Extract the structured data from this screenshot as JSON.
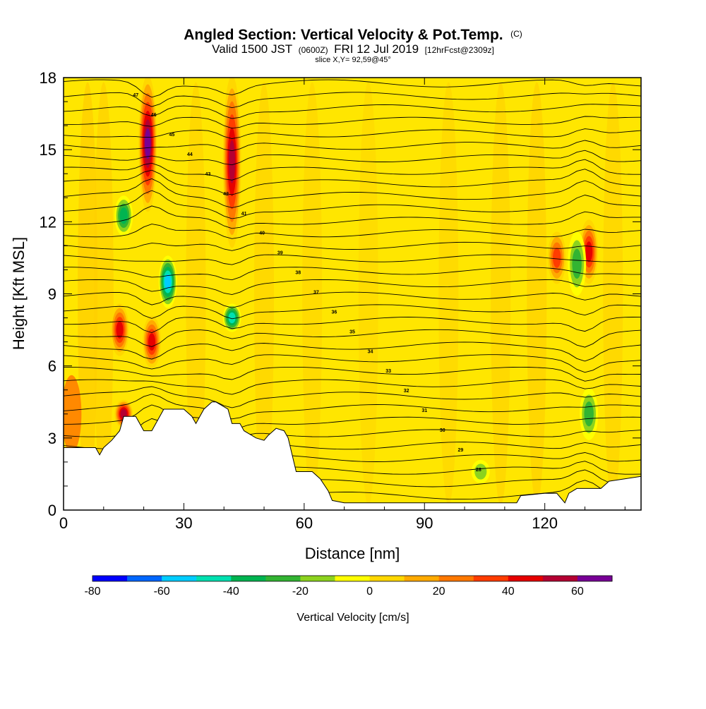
{
  "chart_data": {
    "type": "heatmap",
    "title": {
      "main": "Angled Section: Vertical Velocity & Pot.Temp.",
      "unit": "(C)"
    },
    "subtitle": {
      "valid": "Valid 1500 JST",
      "zulu": "(0600Z)",
      "date": "FRI 12 Jul 2019",
      "forecast": "[12hrFcst@2309z]"
    },
    "slice_label": "slice X,Y= 92,59@45°",
    "xlabel": "Distance [nm]",
    "ylabel": "Height [Kft MSL]",
    "xlim": [
      0,
      144
    ],
    "ylim": [
      0,
      18
    ],
    "x_ticks": [
      "0",
      "30",
      "60",
      "90",
      "120"
    ],
    "y_ticks": [
      "0",
      "3",
      "6",
      "9",
      "12",
      "15",
      "18"
    ],
    "colorbar": {
      "title": "Vertical Velocity [cm/s]",
      "tick_labels": [
        "-80",
        "-60",
        "-40",
        "-20",
        "0",
        "20",
        "40",
        "60"
      ],
      "levels": [
        -80,
        -70,
        -60,
        -50,
        -40,
        -30,
        -20,
        -10,
        0,
        10,
        20,
        30,
        40,
        50,
        60,
        70
      ],
      "colors": [
        "#0000ff",
        "#0066ff",
        "#00ccff",
        "#00e0b0",
        "#00b450",
        "#32b432",
        "#8cd21e",
        "#ffff00",
        "#ffd700",
        "#ffaa00",
        "#ff7800",
        "#ff3c00",
        "#e60000",
        "#b40032",
        "#780096"
      ]
    },
    "background_color": "#ffe600",
    "terrain_top_kft": [
      [
        0,
        2.6
      ],
      [
        8,
        2.6
      ],
      [
        9,
        2.3
      ],
      [
        10,
        2.6
      ],
      [
        12,
        2.9
      ],
      [
        14,
        3.3
      ],
      [
        15,
        3.9
      ],
      [
        18,
        3.9
      ],
      [
        19,
        3.6
      ],
      [
        20,
        3.3
      ],
      [
        22,
        3.3
      ],
      [
        23,
        3.6
      ],
      [
        25,
        4.2
      ],
      [
        30,
        4.2
      ],
      [
        32,
        3.9
      ],
      [
        33,
        3.6
      ],
      [
        35,
        4.2
      ],
      [
        37,
        4.5
      ],
      [
        38,
        4.5
      ],
      [
        41,
        4.2
      ],
      [
        42,
        3.6
      ],
      [
        44,
        3.6
      ],
      [
        45,
        3.3
      ],
      [
        48,
        3.0
      ],
      [
        50,
        2.9
      ],
      [
        51,
        3.1
      ],
      [
        53,
        3.4
      ],
      [
        55,
        3.3
      ],
      [
        56,
        3.0
      ],
      [
        57,
        2.3
      ],
      [
        58,
        1.6
      ],
      [
        62,
        1.6
      ],
      [
        64,
        1.3
      ],
      [
        66,
        0.8
      ],
      [
        67,
        0.4
      ],
      [
        70,
        0.3
      ],
      [
        104,
        0.3
      ],
      [
        113,
        0.3
      ],
      [
        114,
        0.6
      ],
      [
        120,
        0.7
      ],
      [
        123,
        0.7
      ],
      [
        124,
        0.5
      ],
      [
        125,
        0.3
      ],
      [
        126,
        0.7
      ],
      [
        128,
        0.9
      ],
      [
        134,
        0.9
      ],
      [
        136,
        1.2
      ],
      [
        144,
        1.4
      ]
    ],
    "updraft_cores": [
      {
        "x": 21,
        "z": [
          12.5,
          18
        ],
        "w": 65
      },
      {
        "x": 42,
        "z": [
          11,
          18
        ],
        "w": 60
      },
      {
        "x": 14,
        "z": [
          6.5,
          8.5
        ],
        "w": 45
      },
      {
        "x": 22,
        "z": [
          6,
          8
        ],
        "w": 45
      },
      {
        "x": 15,
        "z": [
          3.5,
          4.5
        ],
        "w": 55
      },
      {
        "x": 131,
        "z": [
          9.5,
          12
        ],
        "w": 50
      },
      {
        "x": 123,
        "z": [
          9.5,
          11.5
        ],
        "w": 40
      }
    ],
    "downdraft_cores": [
      {
        "x": 26,
        "z": [
          8.5,
          10.5
        ],
        "w": -55
      },
      {
        "x": 42,
        "z": [
          7.5,
          8.5
        ],
        "w": -45
      },
      {
        "x": 15,
        "z": [
          11.5,
          13
        ],
        "w": -40
      },
      {
        "x": 128,
        "z": [
          9,
          11.5
        ],
        "w": -30
      },
      {
        "x": 131,
        "z": [
          3,
          5
        ],
        "w": -30
      },
      {
        "x": 104,
        "z": [
          1.2,
          2
        ],
        "w": -20
      }
    ],
    "isentrope_labels": [
      "47",
      "46",
      "45",
      "44",
      "43",
      "42",
      "41",
      "40",
      "39",
      "38",
      "37",
      "36",
      "35",
      "34",
      "33",
      "32",
      "31",
      "30",
      "29",
      "28"
    ]
  }
}
